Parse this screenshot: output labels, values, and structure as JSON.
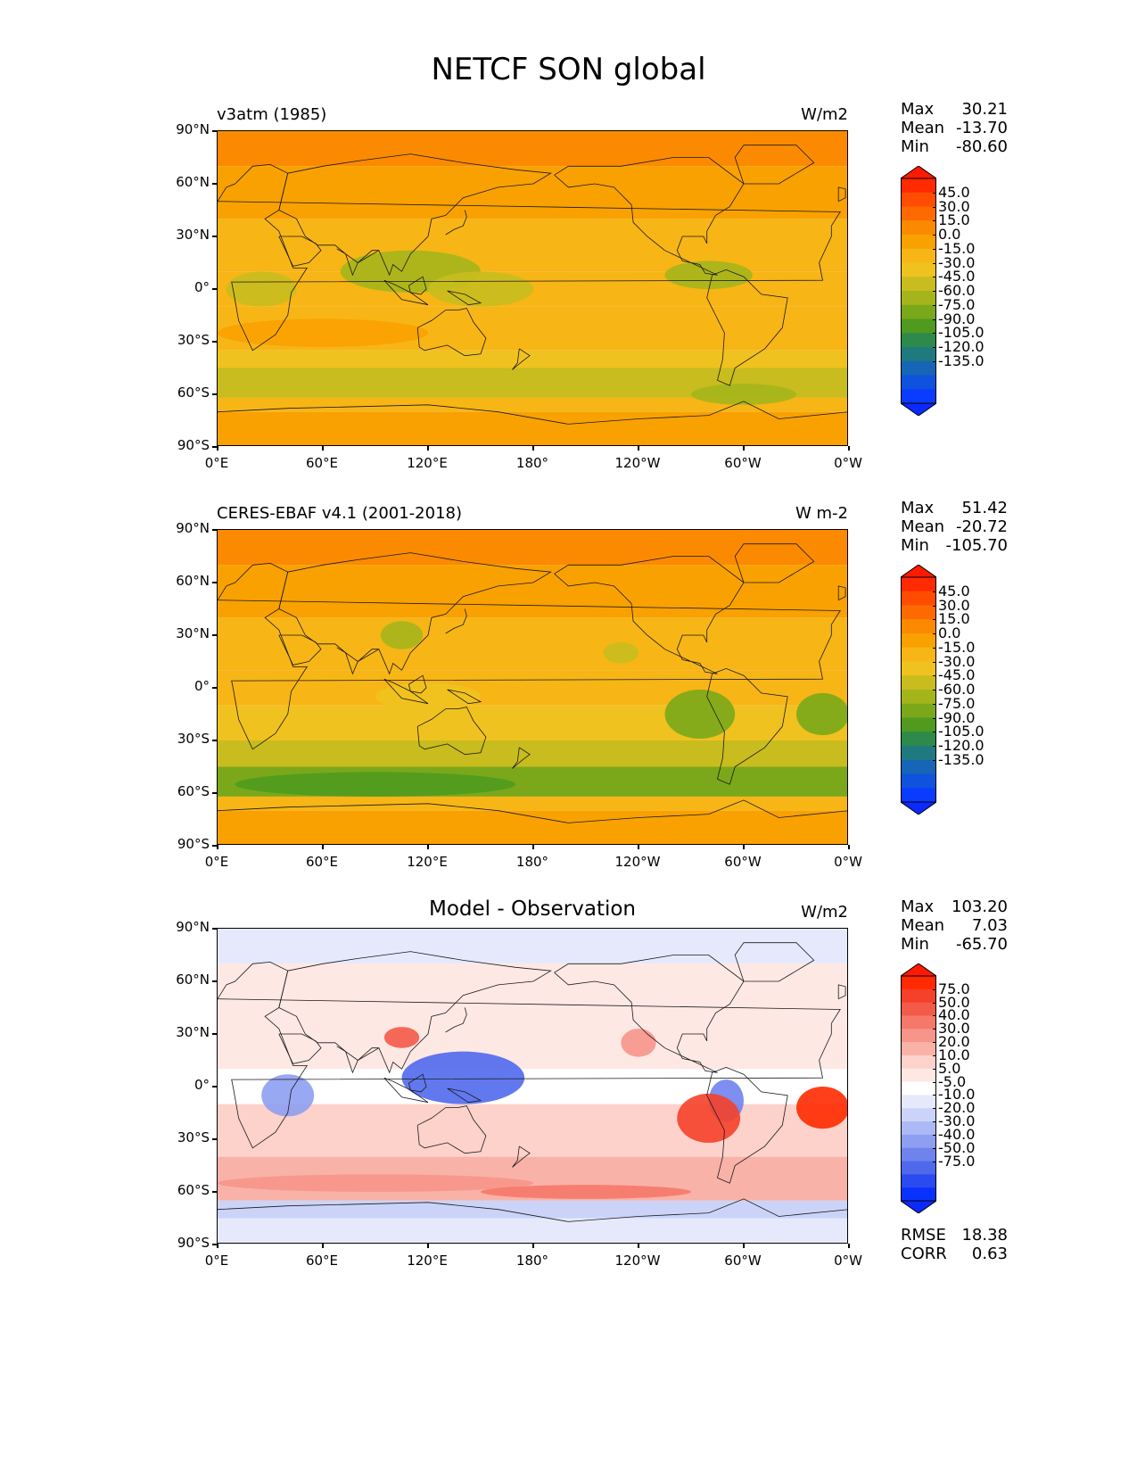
{
  "title": "NETCF SON global",
  "lat_ticks": [
    "90°N",
    "60°N",
    "30°N",
    "0°",
    "30°S",
    "60°S",
    "90°S"
  ],
  "lon_ticks": [
    "0°E",
    "60°E",
    "120°E",
    "180°",
    "120°W",
    "60°W",
    "0°W"
  ],
  "stat_labels": {
    "max": "Max",
    "mean": "Mean",
    "min": "Min",
    "rmse": "RMSE",
    "corr": "CORR"
  },
  "panels": [
    {
      "id": "test",
      "left_title": "v3atm (1985)",
      "center_title": "",
      "units": "W/m2",
      "stats": {
        "max": "30.21",
        "mean": "-13.70",
        "min": "-80.60"
      },
      "colorbar": {
        "labels": [
          "45.0",
          "30.0",
          "15.0",
          "0.0",
          "-15.0",
          "-30.0",
          "-45.0",
          "-60.0",
          "-75.0",
          "-90.0",
          "-105.0",
          "-120.0",
          "-135.0"
        ],
        "colors": [
          "#ff2a00",
          "#ff4c00",
          "#ff6a00",
          "#fb8a00",
          "#f9a100",
          "#f7b516",
          "#f0c21f",
          "#c8bc1e",
          "#a4b51b",
          "#7aa81a",
          "#4f9a1f",
          "#2e8a4a",
          "#1f7a7f",
          "#1566b6",
          "#0f52dd",
          "#0a3cff"
        ],
        "over": "#ff1a00",
        "under": "#0a2aff"
      }
    },
    {
      "id": "reference",
      "left_title": "CERES-EBAF v4.1 (2001-2018)",
      "center_title": "",
      "units": "W m-2",
      "stats": {
        "max": "51.42",
        "mean": "-20.72",
        "min": "-105.70"
      },
      "colorbar": {
        "labels": [
          "45.0",
          "30.0",
          "15.0",
          "0.0",
          "-15.0",
          "-30.0",
          "-45.0",
          "-60.0",
          "-75.0",
          "-90.0",
          "-105.0",
          "-120.0",
          "-135.0"
        ],
        "colors": [
          "#ff2a00",
          "#ff4c00",
          "#ff6a00",
          "#fb8a00",
          "#f9a100",
          "#f7b516",
          "#f0c21f",
          "#c8bc1e",
          "#a4b51b",
          "#7aa81a",
          "#4f9a1f",
          "#2e8a4a",
          "#1f7a7f",
          "#1566b6",
          "#0f52dd",
          "#0a3cff"
        ],
        "over": "#ff1a00",
        "under": "#0a2aff"
      }
    },
    {
      "id": "diff",
      "left_title": "",
      "center_title": "Model - Observation",
      "units": "W/m2",
      "stats": {
        "max": "103.20",
        "mean": "7.03",
        "min": "-65.70"
      },
      "extra_stats": {
        "rmse": "18.38",
        "corr": "0.63"
      },
      "colorbar": {
        "labels": [
          "75.0",
          "50.0",
          "40.0",
          "30.0",
          "20.0",
          "10.0",
          "5.0",
          "-5.0",
          "-10.0",
          "-20.0",
          "-30.0",
          "-40.0",
          "-50.0",
          "-75.0"
        ],
        "colors": [
          "#ff2a00",
          "#f5402a",
          "#f45a48",
          "#f5786a",
          "#f7958a",
          "#f9b2a8",
          "#fcd2cb",
          "#fde8e4",
          "#ffffff",
          "#e6e9fb",
          "#cbd3f8",
          "#adb9f5",
          "#8e9ef1",
          "#6f83ee",
          "#5069ec",
          "#2a4bf0",
          "#0a32ff"
        ],
        "over": "#ff1a00",
        "under": "#0a2aff"
      }
    }
  ]
}
